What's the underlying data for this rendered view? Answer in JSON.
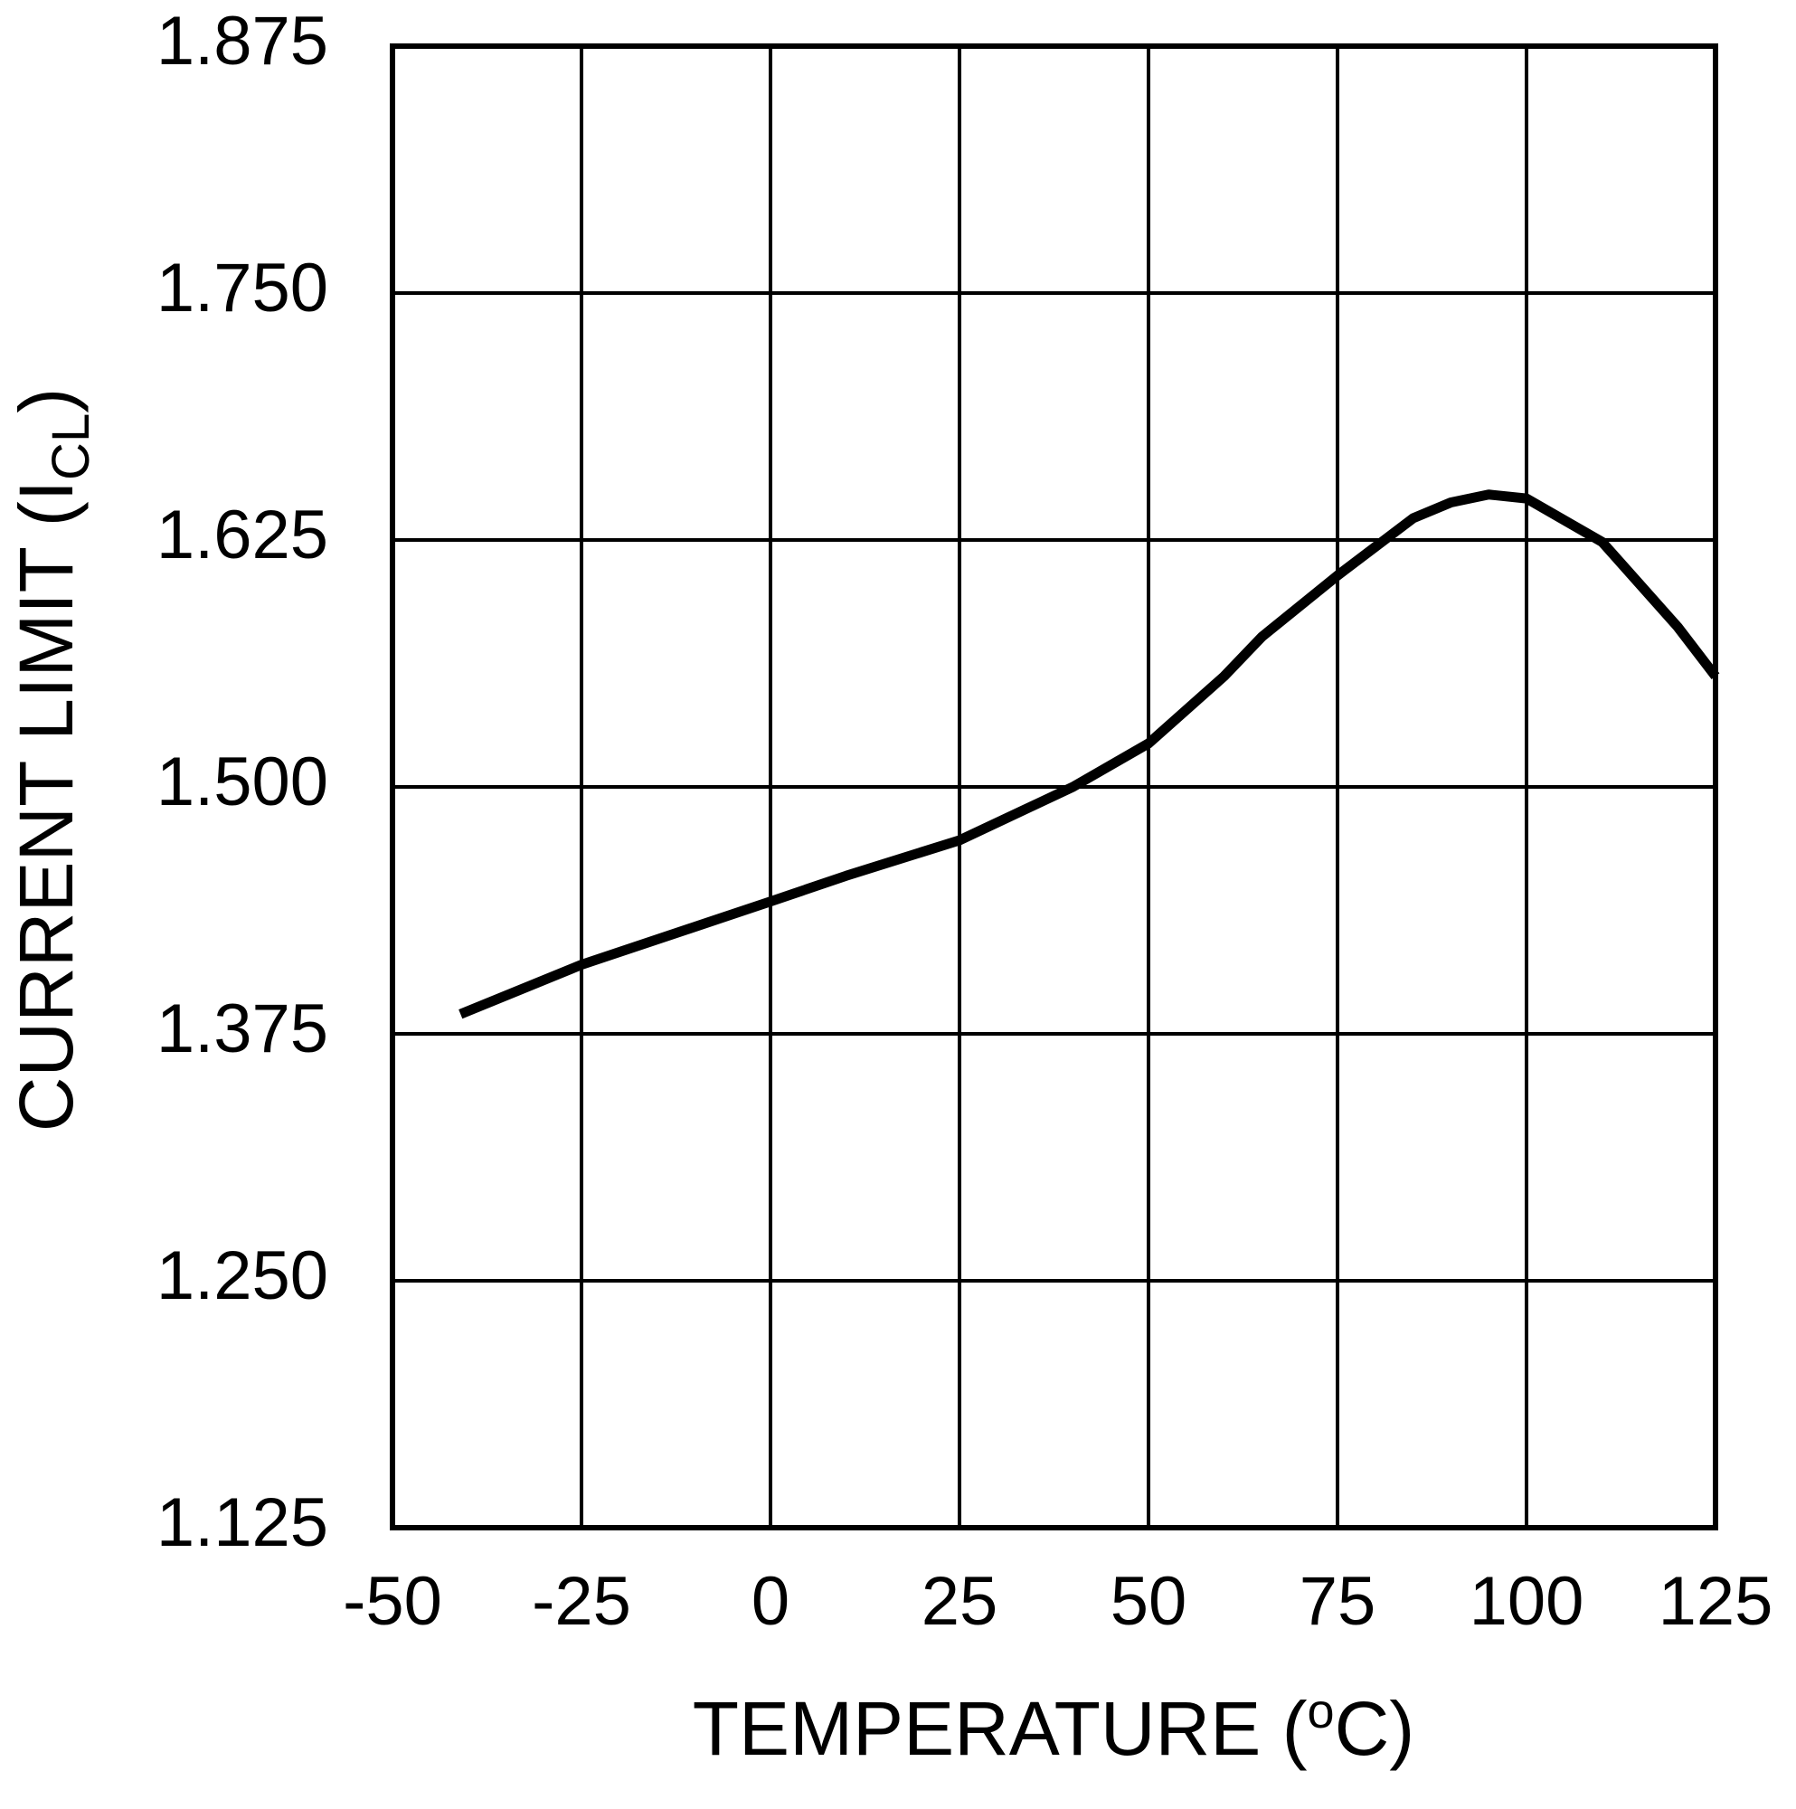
{
  "chart_data": {
    "type": "line",
    "xlabel": {
      "text": "TEMPERATURE (",
      "superscript": "o",
      "suffix": "C)"
    },
    "ylabel": {
      "text": "CURRENT LIMIT (I",
      "subscript": "CL",
      "suffix": ")"
    },
    "x": [
      -41,
      -25,
      0,
      10,
      25,
      40,
      50,
      60,
      65,
      75,
      85,
      90,
      95,
      100,
      110,
      120,
      125
    ],
    "series": [
      {
        "color": "#000000",
        "values": [
          1.385,
          1.41,
          1.442,
          1.455,
          1.473,
          1.5,
          1.522,
          1.556,
          1.576,
          1.607,
          1.636,
          1.644,
          1.648,
          1.646,
          1.624,
          1.581,
          1.556
        ]
      }
    ],
    "xlim": [
      -50,
      125
    ],
    "xticks": [
      -50,
      -25,
      0,
      25,
      50,
      75,
      100,
      125
    ],
    "ylim": [
      1.125,
      1.875
    ],
    "yticks": [
      1.125,
      {
        "value": 1.25,
        "label": "1.250"
      },
      1.375,
      {
        "value": 1.5,
        "label": "1.500"
      },
      1.625,
      {
        "value": 1.75,
        "label": "1.750"
      },
      1.875
    ],
    "grid": true
  }
}
